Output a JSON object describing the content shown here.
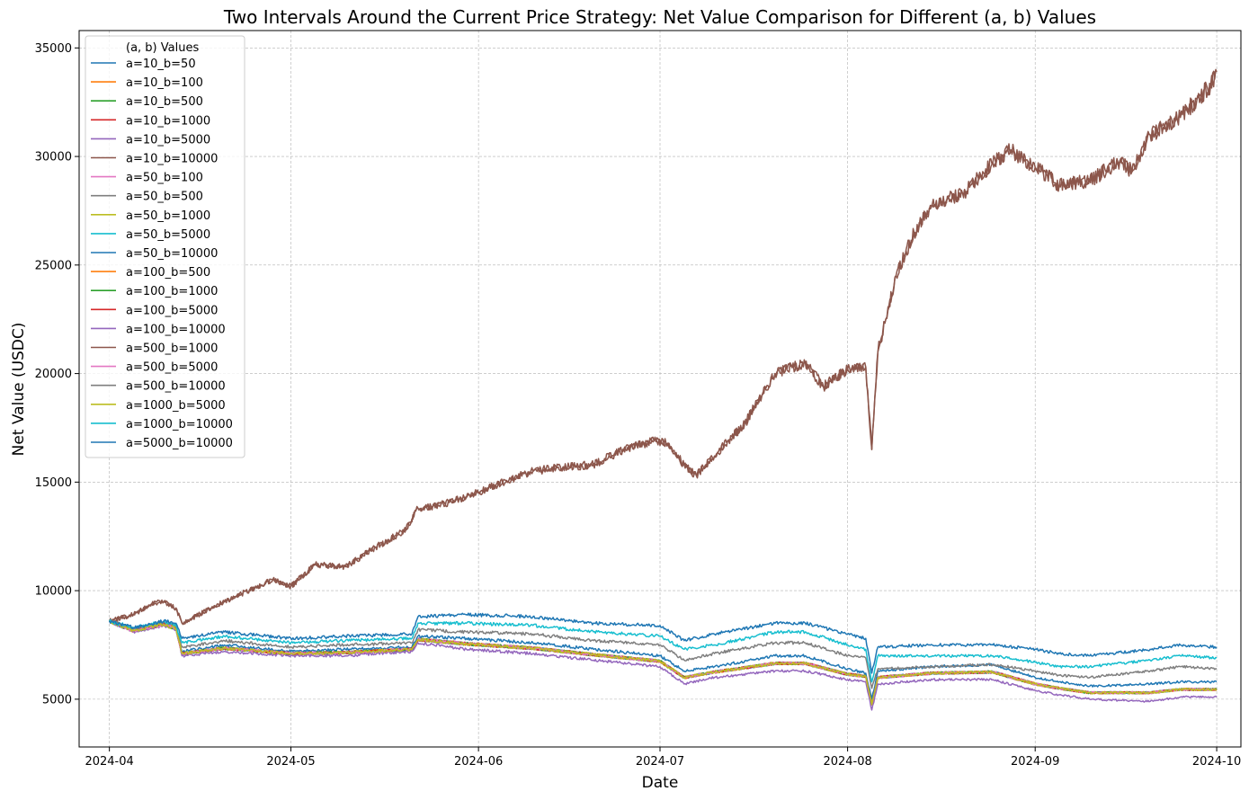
{
  "chart_data": {
    "type": "line",
    "title": "Two Intervals Around the Current Price Strategy: Net Value Comparison for Different (a, b) Values",
    "xlabel": "Date",
    "ylabel": "Net Value (USDC)",
    "x_ticks": [
      "2024-04",
      "2024-05",
      "2024-06",
      "2024-07",
      "2024-08",
      "2024-09",
      "2024-10"
    ],
    "y_ticks": [
      5000,
      10000,
      15000,
      20000,
      25000,
      30000,
      35000
    ],
    "xlim": [
      "2024-03-27",
      "2024-10-05"
    ],
    "ylim": [
      2800,
      35800
    ],
    "grid": true,
    "legend_title": "(a, b) Values",
    "legend_position": "upper-left",
    "colors": {
      "blue": "#1f77b4",
      "orange": "#ff7f0e",
      "green": "#2ca02c",
      "red": "#d62728",
      "purple": "#9467bd",
      "brown": "#8c564b",
      "pink": "#e377c2",
      "gray": "#7f7f7f",
      "olive": "#bcbd22",
      "cyan": "#17becf"
    },
    "series": [
      {
        "name": "a=10_b=50",
        "color": "#1f77b4",
        "profile": "low"
      },
      {
        "name": "a=10_b=100",
        "color": "#ff7f0e",
        "profile": "low"
      },
      {
        "name": "a=10_b=500",
        "color": "#2ca02c",
        "profile": "low"
      },
      {
        "name": "a=10_b=1000",
        "color": "#d62728",
        "profile": "low"
      },
      {
        "name": "a=10_b=5000",
        "color": "#9467bd",
        "profile": "low"
      },
      {
        "name": "a=10_b=10000",
        "color": "#8c564b",
        "profile": "high"
      },
      {
        "name": "a=50_b=100",
        "color": "#e377c2",
        "profile": "low"
      },
      {
        "name": "a=50_b=500",
        "color": "#7f7f7f",
        "profile": "low"
      },
      {
        "name": "a=50_b=1000",
        "color": "#bcbd22",
        "profile": "low"
      },
      {
        "name": "a=50_b=5000",
        "color": "#17becf",
        "profile": "low"
      },
      {
        "name": "a=50_b=10000",
        "color": "#1f77b4",
        "profile": "mid"
      },
      {
        "name": "a=100_b=500",
        "color": "#ff7f0e",
        "profile": "low"
      },
      {
        "name": "a=100_b=1000",
        "color": "#2ca02c",
        "profile": "low"
      },
      {
        "name": "a=100_b=5000",
        "color": "#d62728",
        "profile": "low"
      },
      {
        "name": "a=100_b=10000",
        "color": "#9467bd",
        "profile": "bottom"
      },
      {
        "name": "a=500_b=1000",
        "color": "#8c564b",
        "profile": "high"
      },
      {
        "name": "a=500_b=5000",
        "color": "#e377c2",
        "profile": "low"
      },
      {
        "name": "a=500_b=10000",
        "color": "#7f7f7f",
        "profile": "gray"
      },
      {
        "name": "a=1000_b=5000",
        "color": "#bcbd22",
        "profile": "low"
      },
      {
        "name": "a=1000_b=10000",
        "color": "#17becf",
        "profile": "cyan"
      },
      {
        "name": "a=5000_b=10000",
        "color": "#1f77b4",
        "profile": "top"
      }
    ],
    "profiles": {
      "high": {
        "x": [
          "2024-04-01",
          "2024-04-05",
          "2024-04-08",
          "2024-04-10",
          "2024-04-12",
          "2024-04-13",
          "2024-04-20",
          "2024-04-28",
          "2024-05-01",
          "2024-05-05",
          "2024-05-10",
          "2024-05-15",
          "2024-05-20",
          "2024-05-22",
          "2024-05-25",
          "2024-05-30",
          "2024-06-05",
          "2024-06-10",
          "2024-06-15",
          "2024-06-20",
          "2024-06-25",
          "2024-06-30",
          "2024-07-02",
          "2024-07-05",
          "2024-07-07",
          "2024-07-10",
          "2024-07-15",
          "2024-07-20",
          "2024-07-25",
          "2024-07-28",
          "2024-08-01",
          "2024-08-04",
          "2024-08-05",
          "2024-08-06",
          "2024-08-09",
          "2024-08-12",
          "2024-08-15",
          "2024-08-20",
          "2024-08-25",
          "2024-08-28",
          "2024-09-01",
          "2024-09-05",
          "2024-09-10",
          "2024-09-15",
          "2024-09-17",
          "2024-09-20",
          "2024-09-25",
          "2024-09-30",
          "2024-10-01"
        ],
        "y": [
          8600,
          8900,
          9400,
          9500,
          9200,
          8500,
          9500,
          10500,
          10200,
          11200,
          11100,
          12000,
          12800,
          13800,
          13900,
          14300,
          15000,
          15500,
          15700,
          15800,
          16500,
          16900,
          16800,
          15800,
          15300,
          16200,
          17700,
          20000,
          20500,
          19400,
          20200,
          20300,
          16500,
          21000,
          24500,
          26500,
          27800,
          28300,
          29700,
          30300,
          29500,
          28700,
          28900,
          29800,
          29300,
          31000,
          31800,
          33300,
          33900
        ]
      },
      "top": {
        "x": [
          "2024-04-01",
          "2024-04-05",
          "2024-04-10",
          "2024-04-12",
          "2024-04-13",
          "2024-04-20",
          "2024-05-01",
          "2024-05-10",
          "2024-05-21",
          "2024-05-22",
          "2024-05-30",
          "2024-06-10",
          "2024-06-20",
          "2024-07-01",
          "2024-07-05",
          "2024-07-10",
          "2024-07-20",
          "2024-07-25",
          "2024-08-01",
          "2024-08-04",
          "2024-08-05",
          "2024-08-06",
          "2024-08-15",
          "2024-08-25",
          "2024-09-01",
          "2024-09-05",
          "2024-09-10",
          "2024-09-20",
          "2024-09-25",
          "2024-10-01"
        ],
        "y": [
          8600,
          8300,
          8600,
          8500,
          7800,
          8100,
          7800,
          7900,
          8000,
          8800,
          8900,
          8800,
          8500,
          8400,
          7700,
          8000,
          8500,
          8500,
          8000,
          7800,
          6200,
          7400,
          7500,
          7500,
          7300,
          7100,
          7000,
          7300,
          7500,
          7400
        ]
      },
      "cyan": {
        "x": [
          "2024-04-01",
          "2024-04-05",
          "2024-04-10",
          "2024-04-12",
          "2024-04-13",
          "2024-04-20",
          "2024-05-01",
          "2024-05-10",
          "2024-05-21",
          "2024-05-22",
          "2024-05-30",
          "2024-06-10",
          "2024-06-20",
          "2024-07-01",
          "2024-07-05",
          "2024-07-10",
          "2024-07-20",
          "2024-07-25",
          "2024-08-01",
          "2024-08-04",
          "2024-08-05",
          "2024-08-06",
          "2024-08-15",
          "2024-08-25",
          "2024-09-01",
          "2024-09-05",
          "2024-09-10",
          "2024-09-20",
          "2024-09-25",
          "2024-10-01"
        ],
        "y": [
          8600,
          8300,
          8600,
          8400,
          7600,
          7900,
          7600,
          7700,
          7800,
          8500,
          8500,
          8400,
          8100,
          7900,
          7300,
          7500,
          8100,
          8100,
          7500,
          7300,
          5800,
          7000,
          7000,
          7000,
          6700,
          6500,
          6500,
          6800,
          7000,
          6900
        ]
      },
      "gray": {
        "x": [
          "2024-04-01",
          "2024-04-05",
          "2024-04-10",
          "2024-04-12",
          "2024-04-13",
          "2024-04-20",
          "2024-05-01",
          "2024-05-10",
          "2024-05-21",
          "2024-05-22",
          "2024-05-30",
          "2024-06-10",
          "2024-06-20",
          "2024-07-01",
          "2024-07-05",
          "2024-07-10",
          "2024-07-20",
          "2024-07-25",
          "2024-08-01",
          "2024-08-04",
          "2024-08-05",
          "2024-08-06",
          "2024-08-15",
          "2024-08-25",
          "2024-09-01",
          "2024-09-05",
          "2024-09-10",
          "2024-09-20",
          "2024-09-25",
          "2024-10-01"
        ],
        "y": [
          8600,
          8250,
          8550,
          8350,
          7400,
          7700,
          7400,
          7500,
          7600,
          8200,
          8100,
          8000,
          7700,
          7500,
          6800,
          7100,
          7600,
          7600,
          7000,
          6900,
          5500,
          6400,
          6500,
          6600,
          6300,
          6100,
          6000,
          6300,
          6500,
          6400
        ]
      },
      "mid": {
        "x": [
          "2024-04-01",
          "2024-04-05",
          "2024-04-10",
          "2024-04-12",
          "2024-04-13",
          "2024-04-20",
          "2024-05-01",
          "2024-05-10",
          "2024-05-21",
          "2024-05-22",
          "2024-05-30",
          "2024-06-10",
          "2024-06-20",
          "2024-07-01",
          "2024-07-05",
          "2024-07-10",
          "2024-07-20",
          "2024-07-25",
          "2024-08-01",
          "2024-08-04",
          "2024-08-05",
          "2024-08-06",
          "2024-08-15",
          "2024-08-25",
          "2024-09-01",
          "2024-09-05",
          "2024-09-10",
          "2024-09-20",
          "2024-09-25",
          "2024-10-01"
        ],
        "y": [
          8600,
          8200,
          8500,
          8300,
          7200,
          7500,
          7200,
          7300,
          7400,
          7900,
          7800,
          7600,
          7300,
          7000,
          6300,
          6500,
          7000,
          7000,
          6400,
          6200,
          5000,
          6300,
          6500,
          6600,
          6000,
          5800,
          5600,
          5700,
          5800,
          5800
        ]
      },
      "bottom": {
        "x": [
          "2024-04-01",
          "2024-04-05",
          "2024-04-10",
          "2024-04-12",
          "2024-04-13",
          "2024-04-20",
          "2024-05-01",
          "2024-05-10",
          "2024-05-21",
          "2024-05-22",
          "2024-05-30",
          "2024-06-10",
          "2024-06-20",
          "2024-07-01",
          "2024-07-05",
          "2024-07-10",
          "2024-07-20",
          "2024-07-25",
          "2024-08-01",
          "2024-08-04",
          "2024-08-05",
          "2024-08-06",
          "2024-08-15",
          "2024-08-25",
          "2024-09-01",
          "2024-09-05",
          "2024-09-10",
          "2024-09-20",
          "2024-09-25",
          "2024-10-01"
        ],
        "y": [
          8600,
          8100,
          8400,
          8200,
          7000,
          7200,
          7000,
          7000,
          7200,
          7600,
          7300,
          7100,
          6800,
          6500,
          5700,
          6000,
          6300,
          6300,
          5900,
          5800,
          4500,
          5700,
          5900,
          5900,
          5400,
          5200,
          5000,
          4900,
          5100,
          5100
        ]
      },
      "low": {
        "x": [
          "2024-04-01",
          "2024-04-05",
          "2024-04-10",
          "2024-04-12",
          "2024-04-13",
          "2024-04-20",
          "2024-05-01",
          "2024-05-10",
          "2024-05-21",
          "2024-05-22",
          "2024-05-30",
          "2024-06-10",
          "2024-06-20",
          "2024-07-01",
          "2024-07-05",
          "2024-07-10",
          "2024-07-20",
          "2024-07-25",
          "2024-08-01",
          "2024-08-04",
          "2024-08-05",
          "2024-08-06",
          "2024-08-15",
          "2024-08-25",
          "2024-09-01",
          "2024-09-05",
          "2024-09-10",
          "2024-09-20",
          "2024-09-25",
          "2024-10-01"
        ],
        "y": [
          8600,
          8150,
          8450,
          8250,
          7100,
          7350,
          7100,
          7150,
          7300,
          7750,
          7550,
          7350,
          7050,
          6750,
          6000,
          6250,
          6650,
          6650,
          6150,
          6050,
          4750,
          6000,
          6200,
          6250,
          5700,
          5500,
          5300,
          5300,
          5450,
          5450
        ]
      }
    }
  }
}
